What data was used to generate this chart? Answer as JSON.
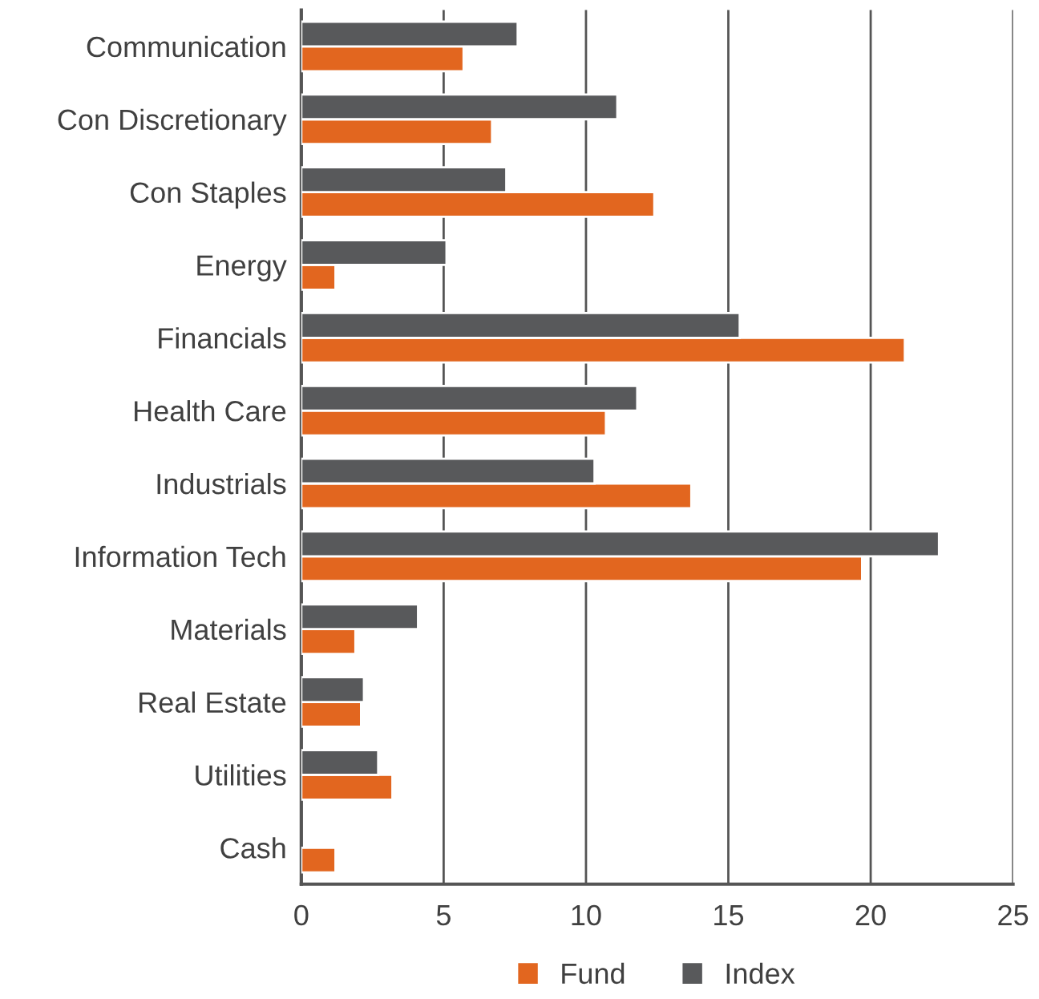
{
  "chart_data": {
    "type": "bar",
    "orientation": "horizontal",
    "categories": [
      "Communication",
      "Con Discretionary",
      "Con Staples",
      "Energy",
      "Financials",
      "Health Care",
      "Industrials",
      "Information Tech",
      "Materials",
      "Real Estate",
      "Utilities",
      "Cash"
    ],
    "series": [
      {
        "name": "Fund",
        "color": "#e2661f",
        "values": [
          5.7,
          6.7,
          12.4,
          1.2,
          21.2,
          10.7,
          13.7,
          19.7,
          1.9,
          2.1,
          3.2,
          1.2
        ]
      },
      {
        "name": "Index",
        "color": "#58595b",
        "values": [
          7.6,
          11.1,
          7.2,
          5.1,
          15.4,
          11.8,
          10.3,
          22.4,
          4.1,
          2.2,
          2.7,
          null
        ]
      }
    ],
    "xlim": [
      0,
      25
    ],
    "xticks": [
      0,
      5,
      10,
      15,
      20,
      25
    ],
    "grid": "x",
    "legend": "bottom"
  }
}
